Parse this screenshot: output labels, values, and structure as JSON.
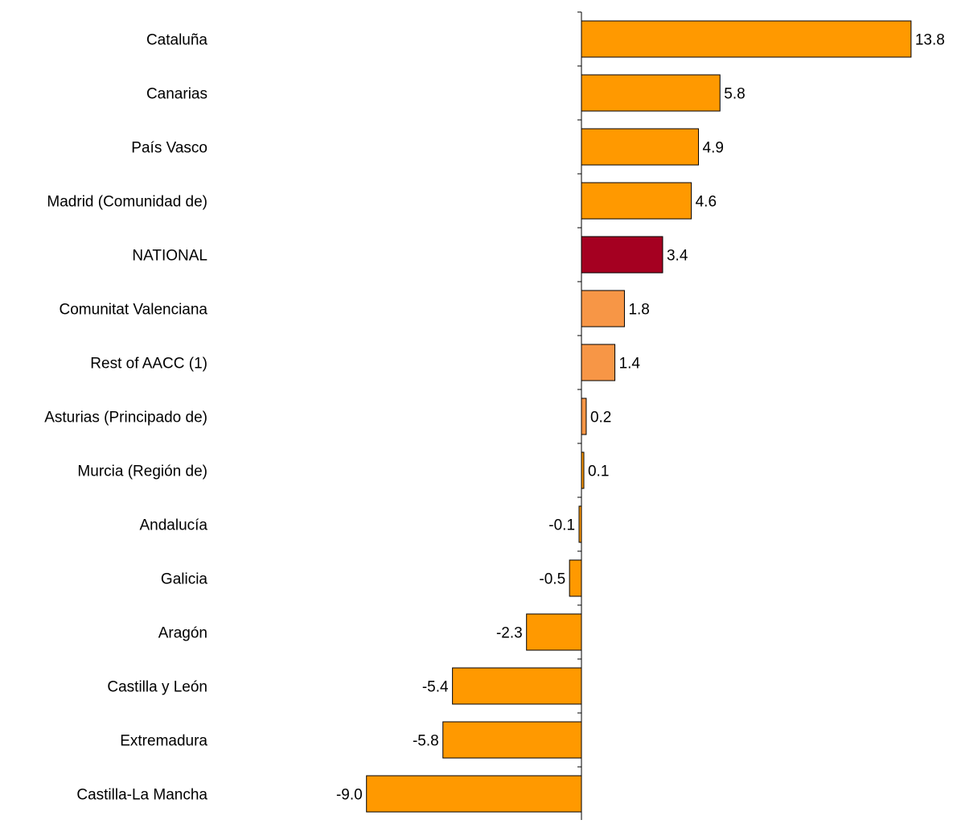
{
  "chart_data": {
    "type": "bar",
    "orientation": "horizontal",
    "title": "",
    "xlabel": "",
    "ylabel": "",
    "categories": [
      "Cataluña",
      "Canarias",
      "País Vasco",
      "Madrid (Comunidad de)",
      "NATIONAL",
      "Comunitat Valenciana",
      "Rest of  AACC (1)",
      "Asturias (Principado de)",
      "Murcia (Región de)",
      "Andalucía",
      "Galicia",
      "Aragón",
      "Castilla y León",
      "Extremadura",
      "Castilla-La Mancha"
    ],
    "values": [
      13.8,
      5.8,
      4.9,
      4.6,
      3.4,
      1.8,
      1.4,
      0.2,
      0.1,
      -0.1,
      -0.5,
      -2.3,
      -5.4,
      -5.8,
      -9.0
    ],
    "value_labels": [
      "13.8",
      "5.8",
      "4.9",
      "4.6",
      "3.4",
      "1.8",
      "1.4",
      "0.2",
      "0.1",
      "-0.1",
      "-0.5",
      "-2.3",
      "-5.4",
      "-5.8",
      "-9.0"
    ],
    "bar_colors": [
      "#FF9900",
      "#FF9900",
      "#FF9900",
      "#FF9900",
      "#A50021",
      "#F79646",
      "#F79646",
      "#F79646",
      "#FF9900",
      "#FF9900",
      "#FF9900",
      "#FF9900",
      "#FF9900",
      "#FF9900",
      "#FF9900"
    ],
    "legend": "none",
    "grid": false
  }
}
